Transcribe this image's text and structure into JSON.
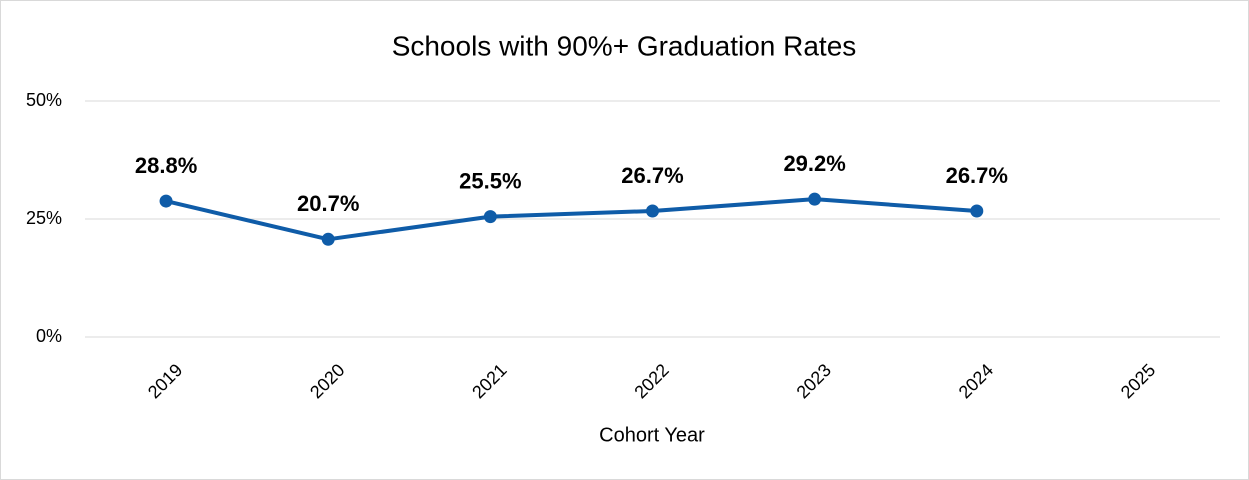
{
  "chart_data": {
    "type": "line",
    "title": "Schools with 90%+ Graduation Rates",
    "x_label": "Cohort Year",
    "categories": [
      "2019",
      "2020",
      "2021",
      "2022",
      "2023",
      "2024",
      "2025"
    ],
    "series": [
      {
        "name": "Schools with 90%+ Graduation Rates",
        "color": "#0f5ca8",
        "values": [
          28.8,
          20.7,
          25.5,
          26.7,
          29.2,
          26.7,
          null
        ],
        "value_labels": [
          "28.8%",
          "20.7%",
          "25.5%",
          "26.7%",
          "29.2%",
          "26.7%",
          null
        ]
      }
    ],
    "ylim": [
      0,
      50
    ],
    "yticks": [
      {
        "value": 0,
        "label": "0%"
      },
      {
        "value": 25,
        "label": "25%"
      },
      {
        "value": 50,
        "label": "50%"
      }
    ],
    "grid": true,
    "legend": false
  }
}
